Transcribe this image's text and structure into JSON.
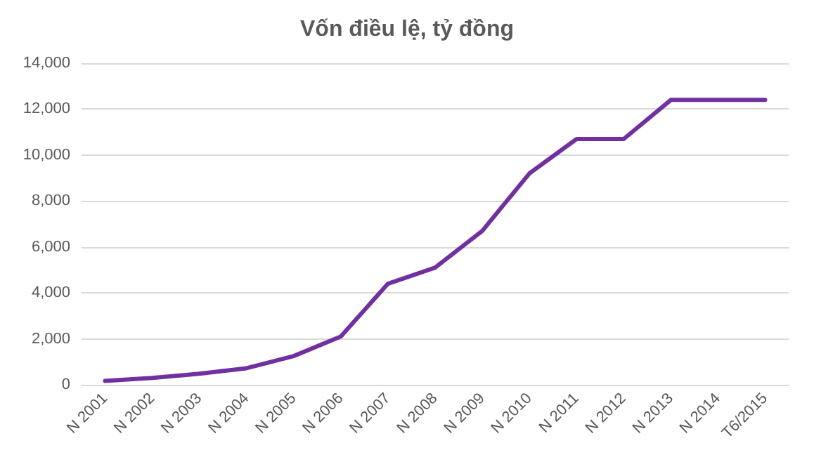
{
  "chart_data": {
    "type": "line",
    "title": "Vốn điều lệ, tỷ đồng",
    "categories": [
      "N 2001",
      "N 2002",
      "N 2003",
      "N 2004",
      "N 2005",
      "N 2006",
      "N 2007",
      "N 2008",
      "N 2009",
      "N 2010",
      "N 2011",
      "N 2012",
      "N 2013",
      "N 2014",
      "T6/2015"
    ],
    "series": [
      {
        "color": "#7030a0",
        "values": [
          170,
          300,
          480,
          720,
          1250,
          2100,
          4400,
          5100,
          6700,
          9200,
          10700,
          10700,
          12400,
          12400,
          12400
        ]
      }
    ],
    "ylim": [
      0,
      14000
    ],
    "yticks": [
      0,
      {
        "value": 2000,
        "label": "2,000"
      },
      {
        "value": 4000,
        "label": "4,000"
      },
      {
        "value": 6000,
        "label": "6,000"
      },
      {
        "value": 8000,
        "label": "8,000"
      },
      {
        "value": 10000,
        "label": "10,000"
      },
      {
        "value": 12000,
        "label": "12,000"
      },
      {
        "value": 14000,
        "label": "14,000"
      }
    ],
    "grid": "y",
    "marker": "none",
    "line_style": "solid"
  }
}
